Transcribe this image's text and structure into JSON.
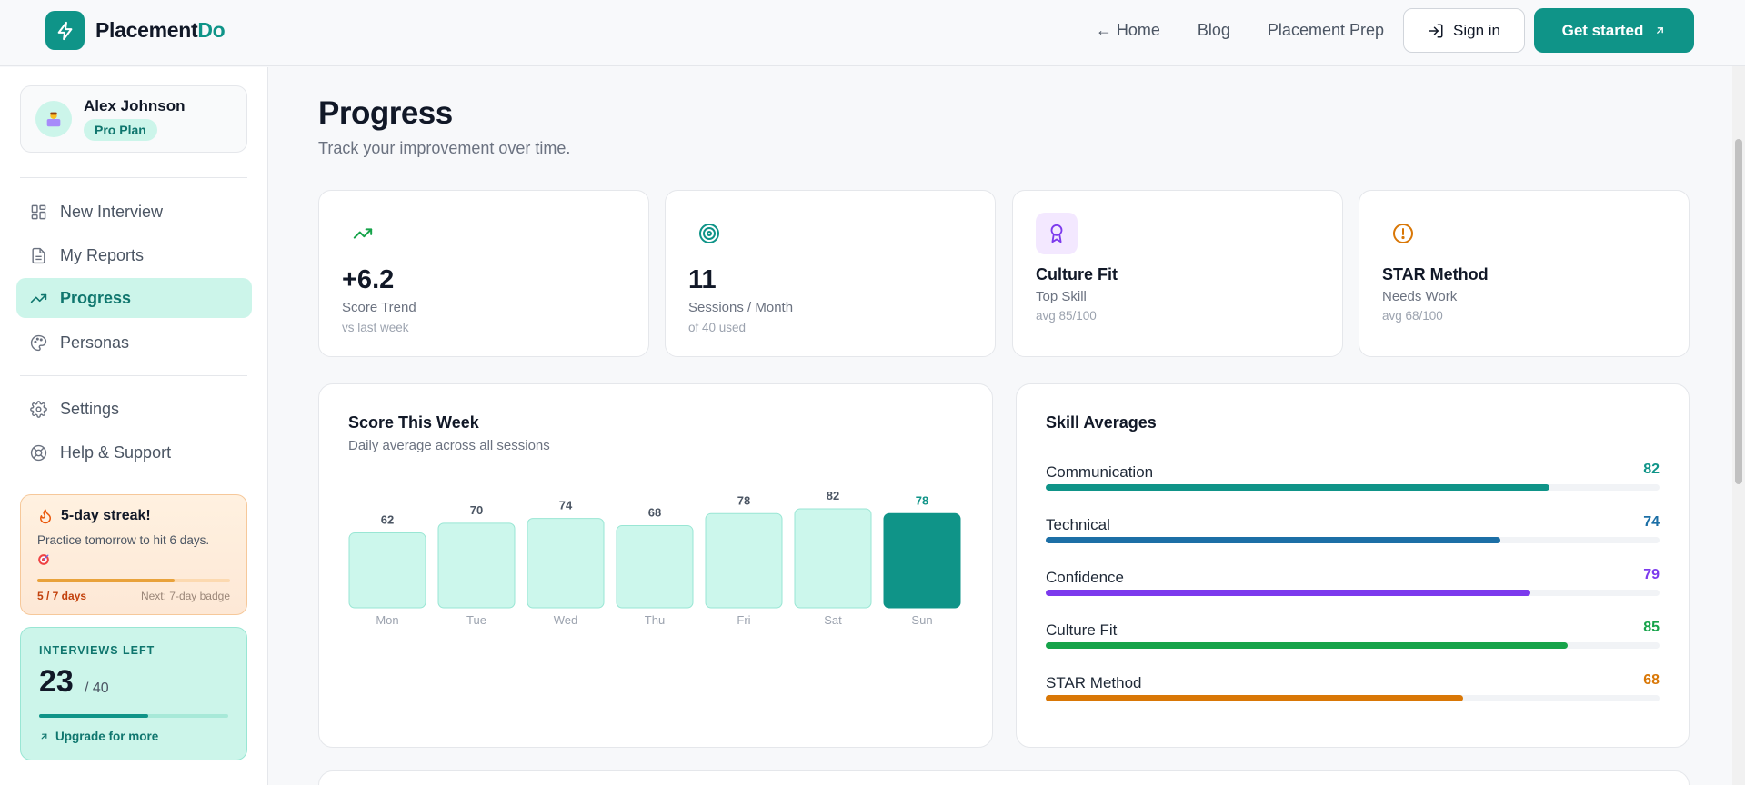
{
  "brand": {
    "name_main": "Placement",
    "name_accent": "Do"
  },
  "topnav": {
    "home": "← Home",
    "blog": "Blog",
    "prep": "Placement Prep",
    "signin": "Sign in",
    "get_started": "Get started"
  },
  "profile": {
    "name": "Alex Johnson",
    "plan": "Pro Plan"
  },
  "sidebar": {
    "items": [
      {
        "label": "New Interview",
        "icon": "grid-icon"
      },
      {
        "label": "My Reports",
        "icon": "document-icon"
      },
      {
        "label": "Progress",
        "icon": "trend-icon",
        "active": true
      },
      {
        "label": "Personas",
        "icon": "palette-icon"
      },
      {
        "label": "Settings",
        "icon": "gear-icon"
      },
      {
        "label": "Help & Support",
        "icon": "lifebuoy-icon"
      }
    ]
  },
  "streak": {
    "title": "5-day streak!",
    "subtitle": "Practice tomorrow to hit 6 days.",
    "progress_label": "5 / 7 days",
    "next_label": "Next: 7-day badge",
    "progress": 0.714
  },
  "interviews_left": {
    "title": "INTERVIEWS LEFT",
    "value": "23",
    "total": "/ 40",
    "progress": 0.575,
    "upgrade": "Upgrade for more"
  },
  "page": {
    "title": "Progress",
    "subtitle": "Track your improvement over time."
  },
  "stats": [
    {
      "icon": "trend-up-icon",
      "value": "+6.2",
      "label": "Score Trend",
      "sub": "vs last week"
    },
    {
      "icon": "target-icon",
      "value": "11",
      "label": "Sessions / Month",
      "sub": "of 40 used"
    },
    {
      "icon": "award-icon",
      "heading": "Culture Fit",
      "label": "Top Skill",
      "sub": "avg 85/100"
    },
    {
      "icon": "alert-icon",
      "heading": "STAR Method",
      "label": "Needs Work",
      "sub": "avg 68/100"
    }
  ],
  "score_panel": {
    "title": "Score This Week",
    "subtitle": "Daily average across all sessions"
  },
  "chart_data": {
    "type": "bar",
    "categories": [
      "Mon",
      "Tue",
      "Wed",
      "Thu",
      "Fri",
      "Sat",
      "Sun"
    ],
    "values": [
      62,
      70,
      74,
      68,
      78,
      82,
      78
    ],
    "highlight_index": 6,
    "colors": {
      "bar": "#ccf7ec",
      "bar_border": "#99e6d4",
      "highlight": "#0f9488",
      "label": "#4b5563",
      "highlight_label": "#0f9488"
    }
  },
  "skills_panel": {
    "title": "Skill Averages",
    "skills": [
      {
        "name": "Communication",
        "value": 82,
        "color": "#0f9488"
      },
      {
        "name": "Technical",
        "value": 74,
        "color": "#1c6fa6"
      },
      {
        "name": "Confidence",
        "value": 79,
        "color": "#7c3aed"
      },
      {
        "name": "Culture Fit",
        "value": 85,
        "color": "#16a34a"
      },
      {
        "name": "STAR Method",
        "value": 68,
        "color": "#d97706"
      }
    ]
  }
}
